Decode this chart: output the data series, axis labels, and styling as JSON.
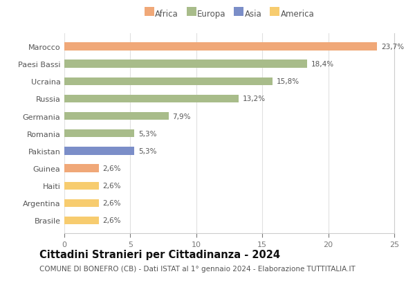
{
  "countries": [
    "Brasile",
    "Argentina",
    "Haiti",
    "Guinea",
    "Pakistan",
    "Romania",
    "Germania",
    "Russia",
    "Ucraina",
    "Paesi Bassi",
    "Marocco"
  ],
  "values": [
    2.6,
    2.6,
    2.6,
    2.6,
    5.3,
    5.3,
    7.9,
    13.2,
    15.8,
    18.4,
    23.7
  ],
  "labels": [
    "2,6%",
    "2,6%",
    "2,6%",
    "2,6%",
    "5,3%",
    "5,3%",
    "7,9%",
    "13,2%",
    "15,8%",
    "18,4%",
    "23,7%"
  ],
  "colors": [
    "#F7CC6F",
    "#F7CC6F",
    "#F7CC6F",
    "#F0A878",
    "#7B8EC8",
    "#A8BC8A",
    "#A8BC8A",
    "#A8BC8A",
    "#A8BC8A",
    "#A8BC8A",
    "#F0A878"
  ],
  "legend": [
    {
      "label": "Africa",
      "color": "#F0A878"
    },
    {
      "label": "Europa",
      "color": "#A8BC8A"
    },
    {
      "label": "Asia",
      "color": "#7B8EC8"
    },
    {
      "label": "America",
      "color": "#F7CC6F"
    }
  ],
  "title": "Cittadini Stranieri per Cittadinanza - 2024",
  "subtitle": "COMUNE DI BONEFRO (CB) - Dati ISTAT al 1° gennaio 2024 - Elaborazione TUTTITALIA.IT",
  "xlim": [
    0,
    25
  ],
  "xticks": [
    0,
    5,
    10,
    15,
    20,
    25
  ],
  "background_color": "#ffffff",
  "plot_bg_color": "#ffffff",
  "grid_color": "#e0e0e0",
  "bar_height": 0.45,
  "title_fontsize": 10.5,
  "subtitle_fontsize": 7.5,
  "label_fontsize": 7.5,
  "ytick_fontsize": 8,
  "xtick_fontsize": 8,
  "legend_fontsize": 8.5
}
